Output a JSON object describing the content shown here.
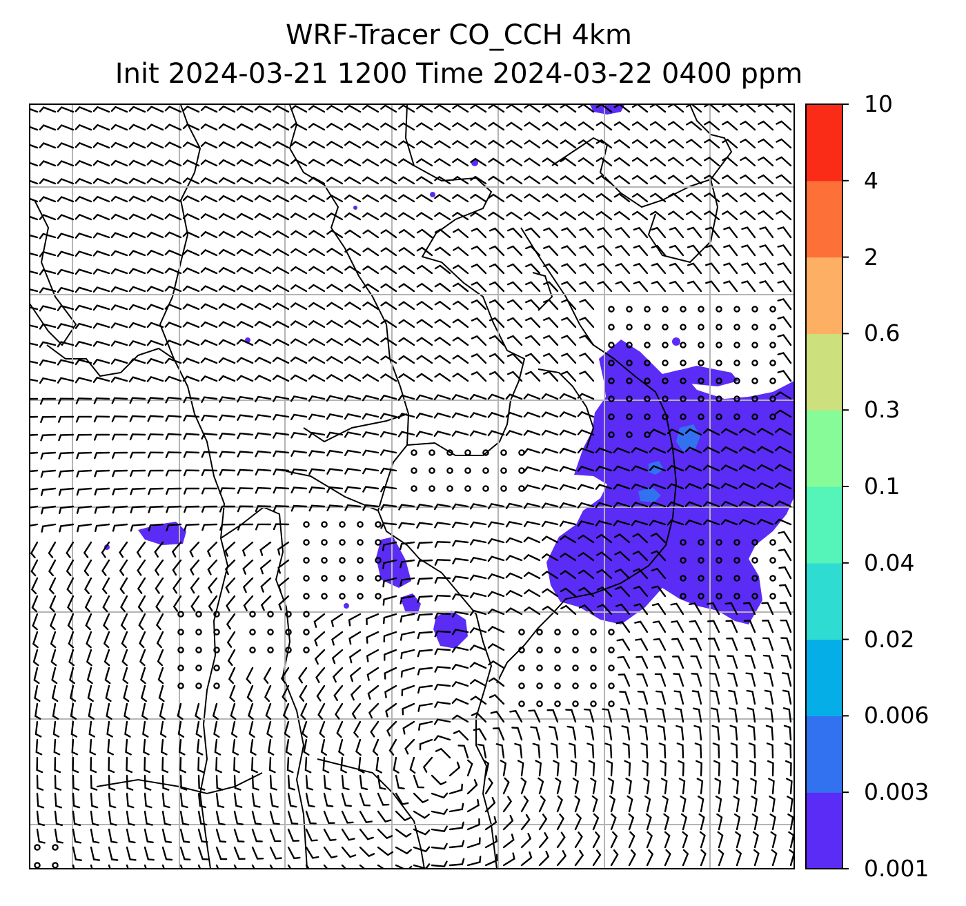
{
  "title": {
    "line1": "WRF-Tracer CO_CCH 4km",
    "line2": "Init 2024-03-21 1200 Time 2024-03-22 0400 ppm"
  },
  "colorbar": {
    "levels": [
      "0.001",
      "0.003",
      "0.006",
      "0.02",
      "0.04",
      "0.1",
      "0.3",
      "0.6",
      "2",
      "4",
      "10"
    ],
    "colors": [
      "#5b2cf5",
      "#3272f0",
      "#06aee8",
      "#2fdcd2",
      "#55f5b9",
      "#86fb97",
      "#cde07e",
      "#fdb063",
      "#fd7038",
      "#fa2c18"
    ]
  },
  "map": {
    "grid": "on",
    "tracer_color": "#5b2cf5",
    "tracer_high_color": "#3272f0",
    "coastline_color": "#000000",
    "gridline_color": "#b4b4b4"
  }
}
